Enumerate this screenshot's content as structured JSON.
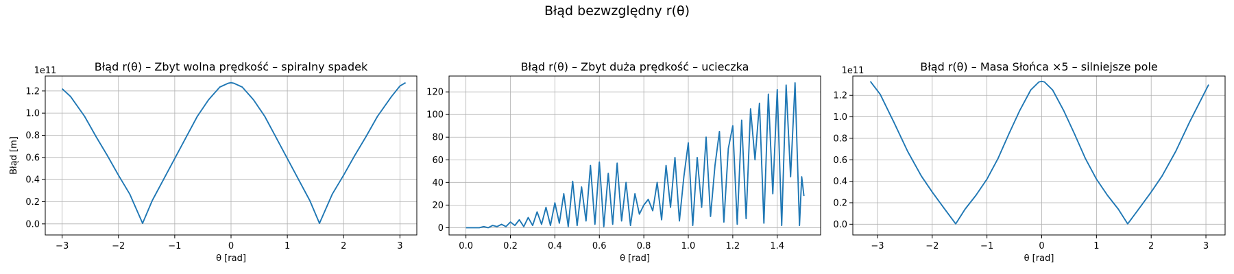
{
  "figure": {
    "suptitle": "Błąd bezwzględny r(θ)"
  },
  "chart_data": [
    {
      "type": "line",
      "title": "Błąd r(θ) – Zbyt wolna prędkość – spiralny spadek",
      "xlabel": "θ [rad]",
      "ylabel": "Błąd [m]",
      "offset_text": "1e11",
      "xlim": [
        -3.3,
        3.3
      ],
      "ylim": [
        -0.1,
        1.335
      ],
      "xticks": [
        -3,
        -2,
        -1,
        0,
        1,
        2,
        3
      ],
      "xtick_labels": [
        "−3",
        "−2",
        "−1",
        "0",
        "1",
        "2",
        "3"
      ],
      "yticks": [
        0.0,
        0.2,
        0.4,
        0.6,
        0.8,
        1.0,
        1.2
      ],
      "ytick_labels": [
        "0.0",
        "0.2",
        "0.4",
        "0.6",
        "0.8",
        "1.0",
        "1.2"
      ],
      "grid": true,
      "line_color": "#1f77b4",
      "series": [
        {
          "x": [
            -3.0,
            -2.85,
            -2.6,
            -2.4,
            -2.2,
            -2.0,
            -1.8,
            -1.571,
            -1.4,
            -1.2,
            -1.0,
            -0.8,
            -0.6,
            -0.4,
            -0.2,
            -0.05,
            0.0,
            0.05,
            0.2,
            0.4,
            0.6,
            0.8,
            1.0,
            1.2,
            1.4,
            1.571,
            1.8,
            2.0,
            2.2,
            2.4,
            2.6,
            2.85,
            3.0,
            3.1
          ],
          "y": [
            1.22,
            1.15,
            0.97,
            0.79,
            0.62,
            0.44,
            0.27,
            0.005,
            0.21,
            0.4,
            0.59,
            0.78,
            0.97,
            1.12,
            1.235,
            1.27,
            1.275,
            1.27,
            1.235,
            1.12,
            0.97,
            0.78,
            0.59,
            0.4,
            0.21,
            0.005,
            0.27,
            0.44,
            0.62,
            0.79,
            0.97,
            1.15,
            1.245,
            1.275
          ]
        }
      ]
    },
    {
      "type": "line",
      "title": "Błąd r(θ) – Zbyt duża prędkość – ucieczka",
      "xlabel": "θ [rad]",
      "ylabel": "",
      "offset_text": "",
      "xlim": [
        -0.076,
        1.595
      ],
      "ylim": [
        -6.4,
        134
      ],
      "xticks": [
        0.0,
        0.2,
        0.4,
        0.6,
        0.8,
        1.0,
        1.2,
        1.4
      ],
      "xtick_labels": [
        "0.0",
        "0.2",
        "0.4",
        "0.6",
        "0.8",
        "1.0",
        "1.2",
        "1.4"
      ],
      "yticks": [
        0,
        20,
        40,
        60,
        80,
        100,
        120
      ],
      "ytick_labels": [
        "0",
        "20",
        "40",
        "60",
        "80",
        "100",
        "120"
      ],
      "grid": true,
      "line_color": "#1f77b4",
      "series": [
        {
          "x": [
            0.0,
            0.06,
            0.08,
            0.1,
            0.12,
            0.14,
            0.16,
            0.18,
            0.2,
            0.22,
            0.24,
            0.26,
            0.28,
            0.3,
            0.32,
            0.34,
            0.36,
            0.38,
            0.4,
            0.42,
            0.44,
            0.46,
            0.48,
            0.5,
            0.52,
            0.54,
            0.56,
            0.58,
            0.6,
            0.62,
            0.64,
            0.66,
            0.68,
            0.7,
            0.72,
            0.74,
            0.76,
            0.78,
            0.8,
            0.82,
            0.84,
            0.86,
            0.88,
            0.9,
            0.92,
            0.94,
            0.96,
            0.98,
            1.0,
            1.02,
            1.04,
            1.06,
            1.08,
            1.1,
            1.12,
            1.14,
            1.16,
            1.18,
            1.2,
            1.22,
            1.24,
            1.26,
            1.28,
            1.3,
            1.32,
            1.34,
            1.36,
            1.38,
            1.4,
            1.42,
            1.44,
            1.46,
            1.48,
            1.5,
            1.51,
            1.52
          ],
          "y": [
            0,
            0,
            1,
            0,
            2,
            1,
            3,
            1,
            5,
            2,
            7,
            1,
            9,
            2,
            14,
            3,
            18,
            2,
            22,
            4,
            30,
            1,
            41,
            2,
            36,
            6,
            55,
            3,
            58,
            1,
            48,
            3,
            57,
            6,
            40,
            2,
            30,
            12,
            20,
            25,
            15,
            40,
            7,
            55,
            18,
            62,
            6,
            45,
            75,
            2,
            62,
            18,
            80,
            10,
            55,
            85,
            5,
            70,
            90,
            3,
            95,
            8,
            105,
            60,
            110,
            4,
            118,
            30,
            122,
            2,
            126,
            45,
            128,
            2,
            45,
            28
          ]
        }
      ]
    },
    {
      "type": "line",
      "title": "Błąd r(θ) – Masa Słońca ×5 – silniejsze pole",
      "xlabel": "θ [rad]",
      "ylabel": "",
      "offset_text": "1e11",
      "xlim": [
        -3.45,
        3.35
      ],
      "ylim": [
        -0.1,
        1.38
      ],
      "xticks": [
        -3,
        -2,
        -1,
        0,
        1,
        2,
        3
      ],
      "xtick_labels": [
        "−3",
        "−2",
        "−1",
        "0",
        "1",
        "2",
        "3"
      ],
      "yticks": [
        0.0,
        0.2,
        0.4,
        0.6,
        0.8,
        1.0,
        1.2
      ],
      "ytick_labels": [
        "0.0",
        "0.2",
        "0.4",
        "0.6",
        "0.8",
        "1.0",
        "1.2"
      ],
      "grid": true,
      "line_color": "#1f77b4",
      "series": [
        {
          "x": [
            -3.13,
            -2.95,
            -2.7,
            -2.45,
            -2.2,
            -2.0,
            -1.8,
            -1.571,
            -1.4,
            -1.2,
            -1.0,
            -0.8,
            -0.6,
            -0.4,
            -0.2,
            -0.05,
            0.0,
            0.05,
            0.2,
            0.4,
            0.6,
            0.8,
            1.0,
            1.2,
            1.4,
            1.571,
            1.8,
            2.0,
            2.2,
            2.45,
            2.7,
            2.9,
            3.05
          ],
          "y": [
            1.33,
            1.21,
            0.95,
            0.68,
            0.45,
            0.3,
            0.16,
            0.003,
            0.14,
            0.27,
            0.42,
            0.61,
            0.84,
            1.06,
            1.25,
            1.325,
            1.33,
            1.325,
            1.25,
            1.06,
            0.84,
            0.61,
            0.42,
            0.27,
            0.14,
            0.003,
            0.16,
            0.3,
            0.45,
            0.68,
            0.95,
            1.15,
            1.3
          ]
        }
      ]
    }
  ]
}
